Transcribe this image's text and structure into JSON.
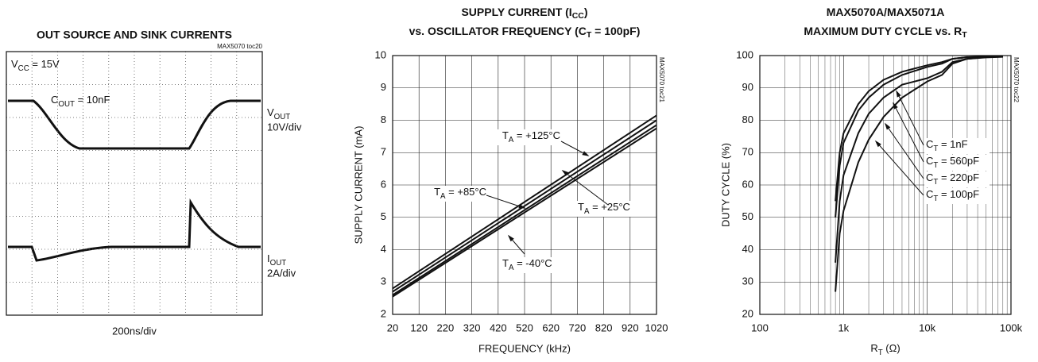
{
  "chart_data": [
    {
      "type": "scope",
      "title": "OUT SOURCE AND SINK CURRENTS",
      "code": "MAX5070 toc20",
      "annotations": [
        [
          "V",
          "CC",
          " = 15V"
        ],
        [
          "C",
          "OUT",
          " = 10nF"
        ]
      ],
      "channels": [
        {
          "name": [
            "V",
            "OUT"
          ],
          "scale": "10V/div"
        },
        {
          "name": [
            "I",
            "OUT"
          ],
          "scale": "2A/div"
        }
      ],
      "xlabel": "200ns/div"
    },
    {
      "type": "line",
      "title": [
        [
          "SUPPLY CURRENT (I",
          "CC",
          ")"
        ],
        [
          "vs. OSCILLATOR FREQUENCY (C",
          "T",
          " = 100pF)"
        ]
      ],
      "code": "MAX5070 toc21",
      "xlabel": "FREQUENCY (kHz)",
      "ylabel": "SUPPLY CURRENT (mA)",
      "x": [
        20,
        1020
      ],
      "xlim": [
        20,
        1020
      ],
      "xticks": [
        20,
        120,
        220,
        320,
        420,
        520,
        620,
        720,
        820,
        920,
        1020
      ],
      "ylim": [
        2,
        10
      ],
      "yticks": [
        2,
        3,
        4,
        5,
        6,
        7,
        8,
        9,
        10
      ],
      "grid": true,
      "color": "#111111",
      "series": [
        {
          "name": [
            "T",
            "A",
            " = +125°C"
          ],
          "values": [
            2.8,
            8.15
          ]
        },
        {
          "name": [
            "T",
            "A",
            " = +85°C"
          ],
          "values": [
            2.7,
            8.0
          ]
        },
        {
          "name": [
            "T",
            "A",
            " = +25°C"
          ],
          "values": [
            2.6,
            7.85
          ]
        },
        {
          "name": [
            "T",
            "A",
            " = -40°C"
          ],
          "values": [
            2.55,
            7.75
          ]
        }
      ]
    },
    {
      "type": "line",
      "title": [
        [
          "MAX5070A/MAX5071A"
        ],
        [
          "MAXIMUM DUTY CYCLE vs. R",
          "T"
        ]
      ],
      "code": "MAX5070 toc22",
      "xlabel": [
        "R",
        "T",
        " (Ω)"
      ],
      "ylabel": "DUTY CYCLE (%)",
      "xlog": true,
      "x": [
        800,
        900,
        1000,
        1500,
        2000,
        3000,
        5000,
        10000,
        15000,
        20000,
        30000,
        50000,
        80000
      ],
      "xlim": [
        100,
        100000
      ],
      "xticks": [
        {
          "value": 100,
          "label": "100"
        },
        {
          "value": 1000,
          "label": "1k"
        },
        {
          "value": 10000,
          "label": "10k"
        },
        {
          "value": 100000,
          "label": "100k"
        }
      ],
      "xminorticks": [
        200,
        300,
        400,
        500,
        600,
        700,
        800,
        900,
        2000,
        3000,
        4000,
        5000,
        6000,
        7000,
        8000,
        9000,
        20000,
        30000,
        40000,
        50000,
        60000,
        70000,
        80000,
        90000
      ],
      "ylim": [
        20,
        100
      ],
      "yticks": [
        20,
        30,
        40,
        50,
        60,
        70,
        80,
        90,
        100
      ],
      "grid": true,
      "color": "#111111",
      "series": [
        {
          "name": [
            "C",
            "T",
            " = 1nF"
          ],
          "values": [
            55,
            70,
            76,
            85,
            89,
            92.5,
            95,
            97,
            98,
            99,
            99.5,
            99.7,
            99.8
          ]
        },
        {
          "name": [
            "C",
            "T",
            " = 560pF"
          ],
          "values": [
            50,
            66,
            73,
            83,
            87,
            91,
            94,
            96.5,
            97.5,
            99,
            99.5,
            99.7,
            99.8
          ]
        },
        {
          "name": [
            "C",
            "T",
            " = 220pF"
          ],
          "values": [
            36,
            55,
            63,
            76,
            82,
            87,
            91,
            93,
            95,
            98,
            99,
            99.5,
            99.7
          ]
        },
        {
          "name": [
            "C",
            "T",
            " = 100pF"
          ],
          "values": [
            27,
            45,
            52,
            67,
            74,
            81,
            87,
            92,
            94,
            97.5,
            99,
            99.4,
            99.6
          ]
        }
      ]
    }
  ]
}
